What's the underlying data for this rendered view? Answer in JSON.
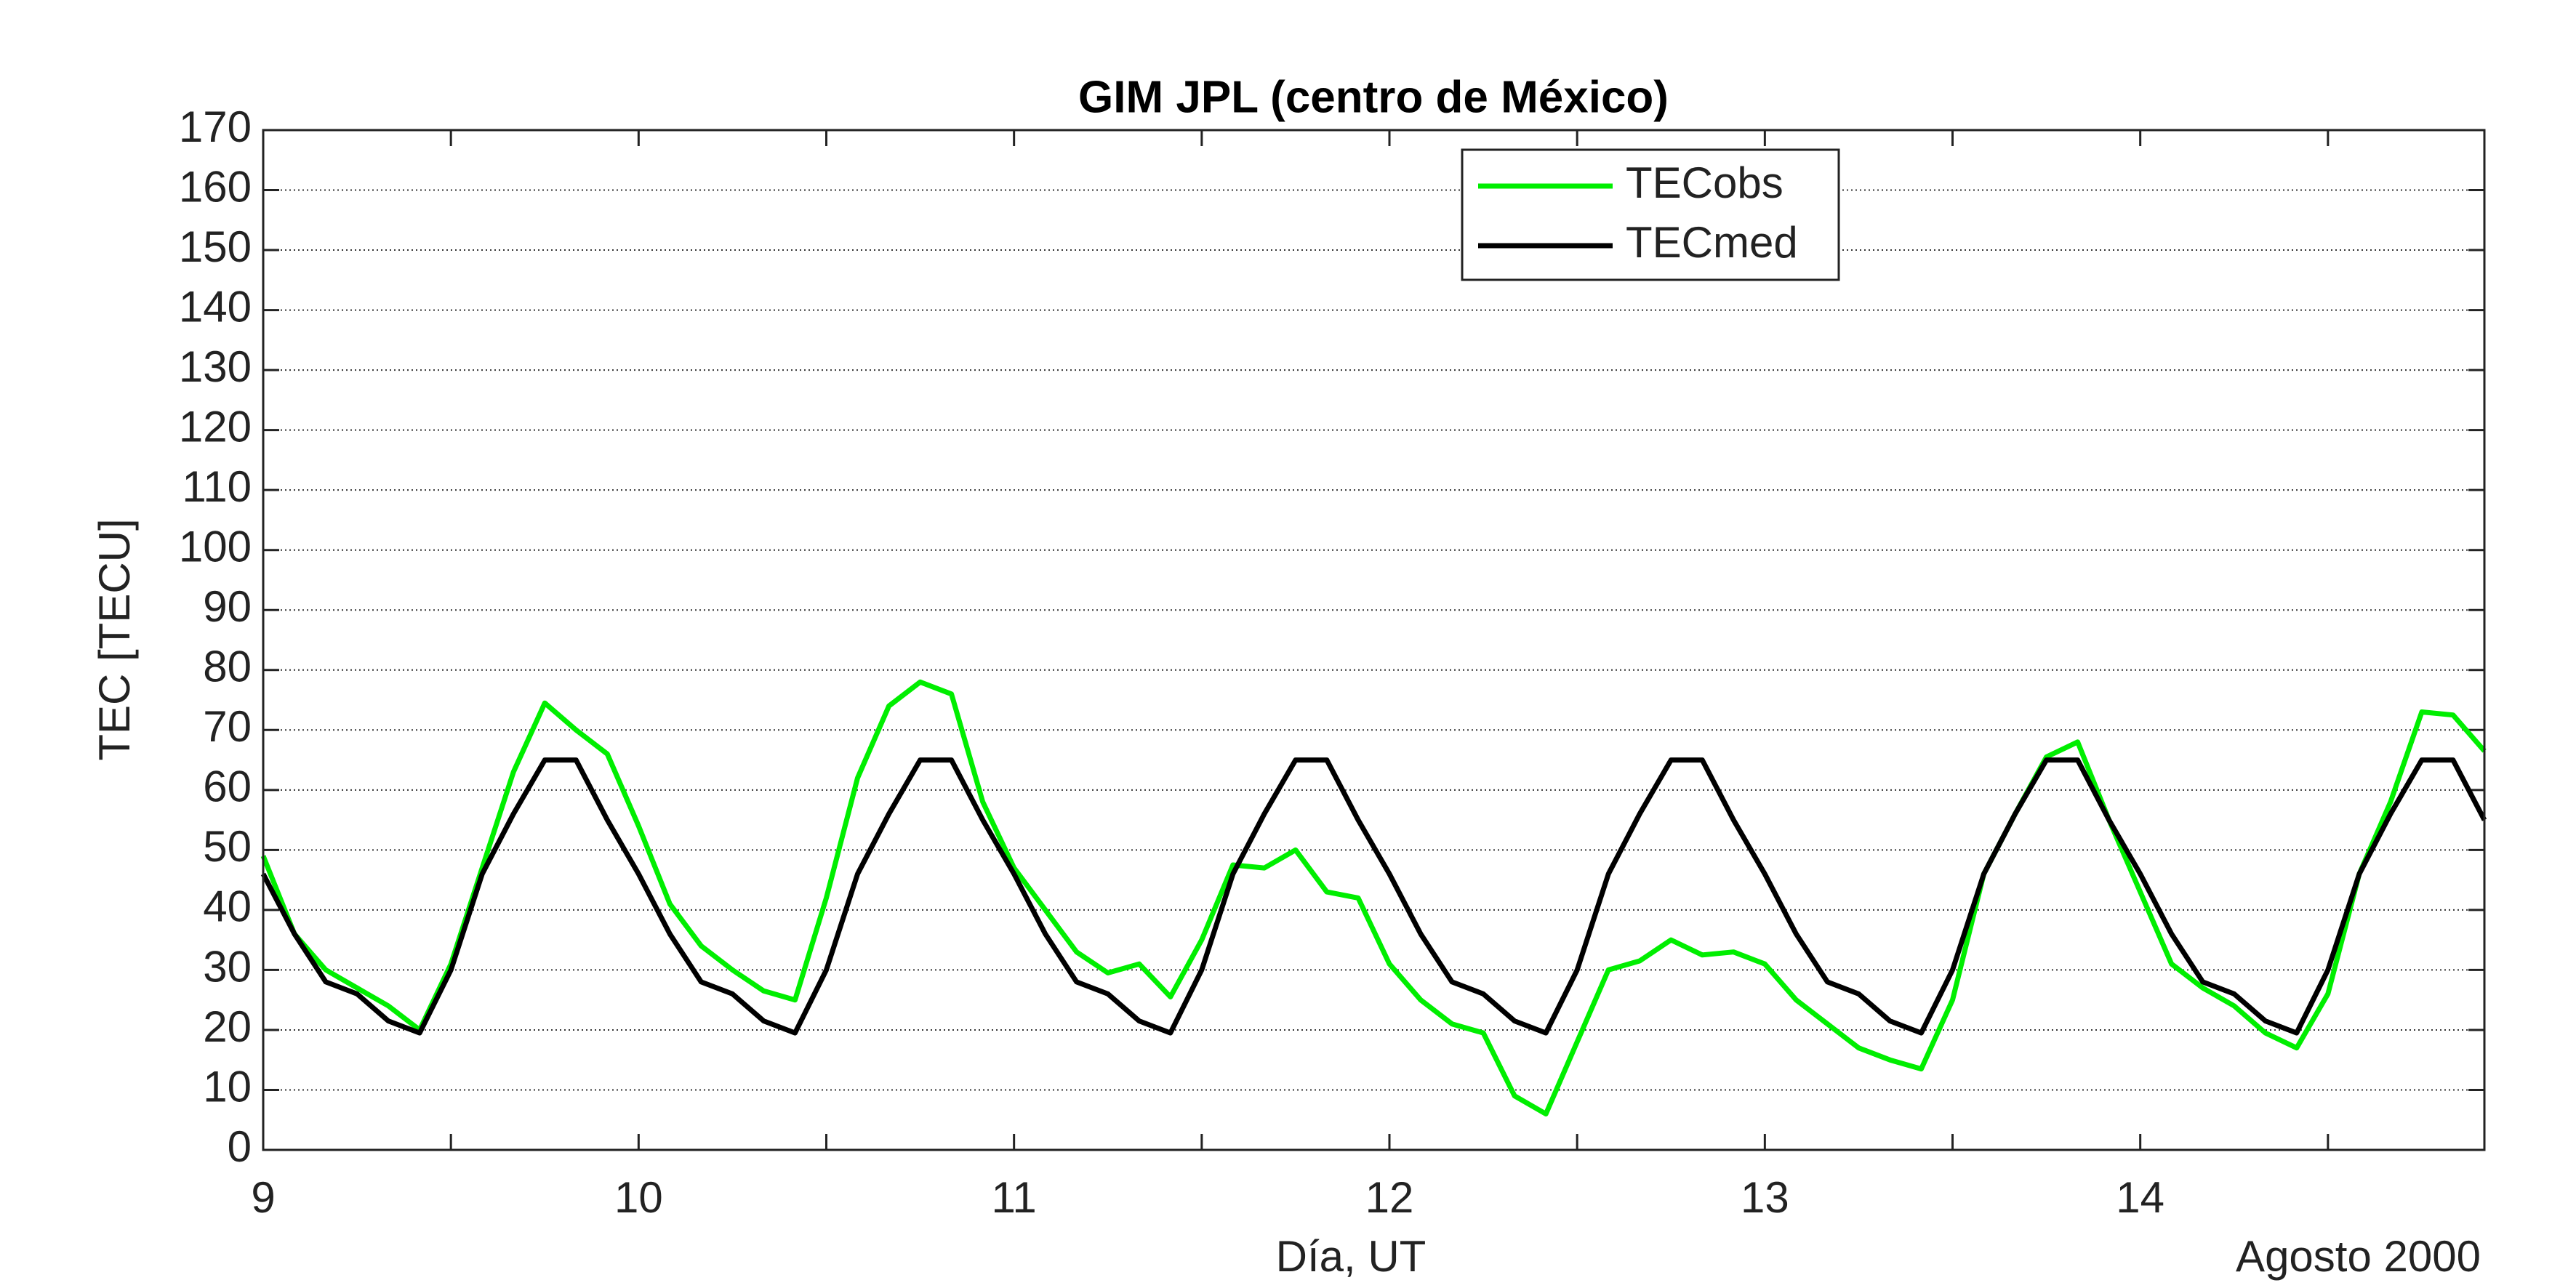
{
  "chart_data": {
    "type": "line",
    "title": "GIM JPL (centro de México)",
    "xlabel": "Día, UT",
    "ylabel": "TEC [TECU]",
    "annotation": "Agosto 2000",
    "x": [
      9,
      9.0833,
      9.1667,
      9.25,
      9.3333,
      9.4167,
      9.5,
      9.5833,
      9.6667,
      9.75,
      9.8333,
      9.9167,
      10,
      10.0833,
      10.1667,
      10.25,
      10.3333,
      10.4167,
      10.5,
      10.5833,
      10.6667,
      10.75,
      10.8333,
      10.9167,
      11,
      11.0833,
      11.1667,
      11.25,
      11.3333,
      11.4167,
      11.5,
      11.5833,
      11.6667,
      11.75,
      11.8333,
      11.9167,
      12,
      12.0833,
      12.1667,
      12.25,
      12.3333,
      12.4167,
      12.5,
      12.5833,
      12.6667,
      12.75,
      12.8333,
      12.9167,
      13,
      13.0833,
      13.1667,
      13.25,
      13.3333,
      13.4167,
      13.5,
      13.5833,
      13.6667,
      13.75,
      13.8333,
      13.9167,
      14,
      14.0833,
      14.1667,
      14.25,
      14.3333,
      14.4167,
      14.5,
      14.5833,
      14.6667,
      14.75,
      14.8333,
      14.9167
    ],
    "series": [
      {
        "name": "TECobs",
        "color": "#00ee00",
        "values": [
          49,
          36,
          30,
          27,
          24,
          20,
          31,
          47,
          63,
          74.5,
          70,
          66,
          54,
          41,
          34,
          30,
          26.5,
          25,
          42,
          62,
          74,
          78,
          76,
          58,
          47,
          40,
          33,
          29.5,
          31,
          25.5,
          35,
          47.5,
          47,
          50,
          43,
          42,
          31,
          25,
          21,
          19.5,
          9,
          6,
          18,
          30,
          31.5,
          35,
          32.5,
          33,
          31,
          25,
          21,
          17,
          15,
          13.5,
          25,
          46,
          56,
          65.5,
          68,
          55,
          43,
          31,
          27,
          24,
          19.5,
          17,
          26,
          46,
          58,
          73,
          72.5,
          66.5
        ]
      },
      {
        "name": "TECmed",
        "color": "#000000",
        "values": [
          46,
          36,
          28,
          26,
          21.5,
          19.5,
          30,
          46,
          56,
          65,
          65,
          55,
          46,
          36,
          28,
          26,
          21.5,
          19.5,
          30,
          46,
          56,
          65,
          65,
          55,
          46,
          36,
          28,
          26,
          21.5,
          19.5,
          30,
          46,
          56,
          65,
          65,
          55,
          46,
          36,
          28,
          26,
          21.5,
          19.5,
          30,
          46,
          56,
          65,
          65,
          55,
          46,
          36,
          28,
          26,
          21.5,
          19.5,
          30,
          46,
          56,
          65,
          65,
          55,
          46,
          36,
          28,
          26,
          21.5,
          19.5,
          30,
          46,
          56,
          65,
          65,
          55
        ]
      }
    ],
    "xlim": [
      9,
      14.9167
    ],
    "xticks": [
      9,
      10,
      11,
      12,
      13,
      14
    ],
    "xminorticks": [
      9.5,
      10.5,
      11.5,
      12.5,
      13.5,
      14.5
    ],
    "ylim": [
      0,
      170
    ],
    "yticks": [
      0,
      10,
      20,
      30,
      40,
      50,
      60,
      70,
      80,
      90,
      100,
      110,
      120,
      130,
      140,
      150,
      160,
      170
    ],
    "grid": true,
    "legend": "top"
  }
}
